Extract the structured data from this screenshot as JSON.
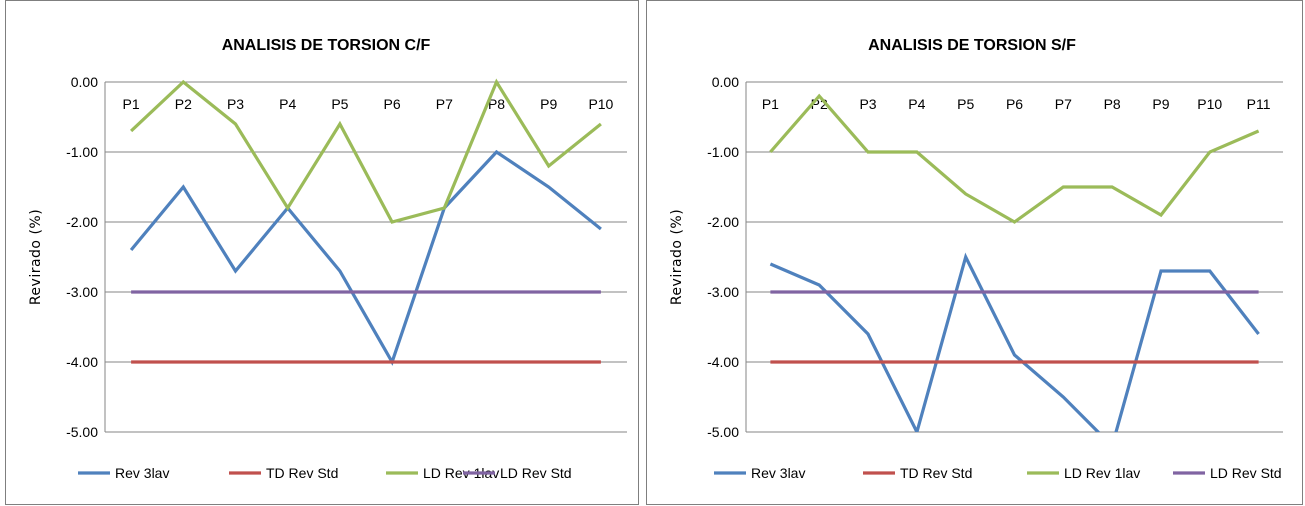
{
  "chart_data": [
    {
      "type": "line",
      "title": "ANALISIS DE TORSION C/F",
      "ylabel": "Revirado (%)",
      "xlabel": "",
      "categories": [
        "P1",
        "P2",
        "P3",
        "P4",
        "P5",
        "P6",
        "P7",
        "P8",
        "P9",
        "P10"
      ],
      "ylim": [
        -5.0,
        0.0
      ],
      "yticks": [
        "0.00",
        "-1.00",
        "-2.00",
        "-3.00",
        "-4.00",
        "-5.00"
      ],
      "grid": true,
      "legend_position": "bottom",
      "series": [
        {
          "name": "Rev 3lav",
          "color": "#4f81bd",
          "values": [
            -2.4,
            -1.5,
            -2.7,
            -1.8,
            -2.7,
            -4.0,
            -1.8,
            -1.0,
            -1.5,
            -2.1
          ]
        },
        {
          "name": "TD Rev Std",
          "color": "#c0504d",
          "values": [
            -4.0,
            -4.0,
            -4.0,
            -4.0,
            -4.0,
            -4.0,
            -4.0,
            -4.0,
            -4.0,
            -4.0
          ]
        },
        {
          "name": "LD Rev 1lav",
          "color": "#9bbb59",
          "values": [
            -0.7,
            0.0,
            -0.6,
            -1.8,
            -0.6,
            -2.0,
            -1.8,
            0.0,
            -1.2,
            -0.6
          ]
        },
        {
          "name": "LD Rev Std",
          "color": "#8064a2",
          "values": [
            -3.0,
            -3.0,
            -3.0,
            -3.0,
            -3.0,
            -3.0,
            -3.0,
            -3.0,
            -3.0,
            -3.0
          ]
        }
      ]
    },
    {
      "type": "line",
      "title": "ANALISIS DE TORSION S/F",
      "ylabel": "Revirado (%)",
      "xlabel": "",
      "categories": [
        "P1",
        "P2",
        "P3",
        "P4",
        "P5",
        "P6",
        "P7",
        "P8",
        "P9",
        "P10",
        "P11"
      ],
      "ylim": [
        -5.0,
        0.0
      ],
      "yticks": [
        "0.00",
        "-1.00",
        "-2.00",
        "-3.00",
        "-4.00",
        "-5.00"
      ],
      "grid": true,
      "legend_position": "bottom",
      "series": [
        {
          "name": "Rev 3lav",
          "color": "#4f81bd",
          "values": [
            -2.6,
            -2.9,
            -3.6,
            -5.0,
            -2.5,
            -3.9,
            -4.5,
            -5.2,
            -2.7,
            -2.7,
            -3.6
          ]
        },
        {
          "name": "TD Rev Std",
          "color": "#c0504d",
          "values": [
            -4.0,
            -4.0,
            -4.0,
            -4.0,
            -4.0,
            -4.0,
            -4.0,
            -4.0,
            -4.0,
            -4.0,
            -4.0
          ]
        },
        {
          "name": "LD Rev 1lav",
          "color": "#9bbb59",
          "values": [
            -1.0,
            -0.2,
            -1.0,
            -1.0,
            -1.6,
            -2.0,
            -1.5,
            -1.5,
            -1.9,
            -1.0,
            -0.7
          ]
        },
        {
          "name": "LD Rev Std",
          "color": "#8064a2",
          "values": [
            -3.0,
            -3.0,
            -3.0,
            -3.0,
            -3.0,
            -3.0,
            -3.0,
            -3.0,
            -3.0,
            -3.0,
            -3.0
          ]
        }
      ]
    }
  ]
}
